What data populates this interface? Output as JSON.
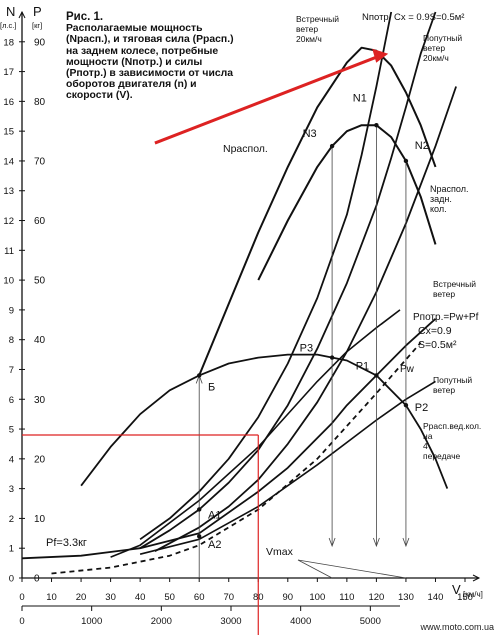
{
  "caption": {
    "title": "Рис. 1.",
    "body": "Располагаемые мощность (Nрасп.), и тяговая сила (Pрасп.) на заднем колесе, потребные мощности (Nпотр.) и силы (Pпотр.) в зависимости от числа оборотов двигателя (n) и скорости (V)."
  },
  "watermark": "www.moto.com.ua",
  "chart_data": {
    "type": "line",
    "axes": {
      "y_power": {
        "label": "N",
        "unit": "[л.с.]",
        "range": [
          0,
          19
        ],
        "ticks": [
          "0",
          "1",
          "2",
          "3",
          "4",
          "5",
          "6",
          "7",
          "8",
          "9",
          "10",
          "11",
          "12",
          "13",
          "14",
          "15",
          "16",
          "17",
          "18"
        ]
      },
      "y_force": {
        "label": "P",
        "unit": "[кг]",
        "range": [
          0,
          95
        ],
        "ticks": [
          "0",
          "10",
          "20",
          "30",
          "40",
          "50",
          "60",
          "70",
          "80",
          "90"
        ]
      },
      "x_speed": {
        "label": "V",
        "unit": "[км/ч]",
        "range": [
          0,
          150
        ],
        "ticks": [
          "0",
          "10",
          "20",
          "30",
          "40",
          "50",
          "60",
          "70",
          "80",
          "90",
          "100",
          "110",
          "120",
          "130",
          "140",
          "150"
        ]
      },
      "x_rpm": {
        "label": "",
        "range": [
          0,
          6000
        ],
        "ticks": [
          "0",
          "1000",
          "2000",
          "3000",
          "4000",
          "5000"
        ]
      }
    },
    "curve_labels": {
      "n_headwind_top": "Встречный ветер 20км/ч",
      "n_req_top": "Nпотр. Cx = 0.9S=0.5м²",
      "n_tailwind_top": "Попутный ветер 20км/ч",
      "n_avail": "Nраспол.",
      "n_avail_rear": "Nраспол. задн. кол.",
      "headwind_right": "Встречный ветер",
      "p_req": "Pпотр.=Pw+Pf",
      "cx": "Cx=0.9",
      "s": "S=0.5м²",
      "pw": "Pw",
      "tailwind_right": "Попутный ветер",
      "p_avail": "Pрасп.вед.кол. на 4 передаче",
      "vmax": "Vmax",
      "pf": "Pf=3.3кг"
    },
    "points": [
      "N1",
      "N2",
      "N3",
      "P1",
      "P2",
      "P3",
      "A1",
      "A2",
      "Б"
    ],
    "series": [
      {
        "key": "n_avail",
        "values": [
          [
            60,
            6.8
          ],
          [
            70,
            9.2
          ],
          [
            80,
            11.6
          ],
          [
            90,
            13.8
          ],
          [
            100,
            15.8
          ],
          [
            110,
            17.3
          ],
          [
            115,
            17.8
          ],
          [
            120,
            17.7
          ],
          [
            125,
            17.2
          ],
          [
            130,
            16.3
          ],
          [
            135,
            15.2
          ],
          [
            140,
            13.8
          ]
        ]
      },
      {
        "key": "n_avail_rear",
        "values": [
          [
            80,
            10.0
          ],
          [
            90,
            12.0
          ],
          [
            100,
            13.8
          ],
          [
            105,
            14.5
          ],
          [
            110,
            15.0
          ],
          [
            115,
            15.2
          ],
          [
            120,
            15.2
          ],
          [
            125,
            14.8
          ],
          [
            130,
            14.0
          ],
          [
            135,
            12.8
          ],
          [
            140,
            11.2
          ]
        ]
      },
      {
        "key": "n_req_head",
        "values": [
          [
            40,
            1.3
          ],
          [
            50,
            2.0
          ],
          [
            60,
            2.9
          ],
          [
            70,
            4.0
          ],
          [
            80,
            5.4
          ],
          [
            90,
            7.2
          ],
          [
            100,
            9.4
          ],
          [
            105,
            10.8
          ],
          [
            110,
            12.2
          ],
          [
            115,
            14.2
          ],
          [
            120,
            16.5
          ],
          [
            125,
            19.0
          ]
        ]
      },
      {
        "key": "n_req",
        "values": [
          [
            40,
            1.0
          ],
          [
            50,
            1.6
          ],
          [
            60,
            2.3
          ],
          [
            70,
            3.2
          ],
          [
            80,
            4.3
          ],
          [
            90,
            5.8
          ],
          [
            100,
            7.7
          ],
          [
            110,
            9.9
          ],
          [
            120,
            12.5
          ],
          [
            125,
            14.1
          ],
          [
            130,
            15.8
          ],
          [
            135,
            17.6
          ],
          [
            140,
            19.0
          ]
        ]
      },
      {
        "key": "n_req_tail",
        "values": [
          [
            45,
            0.9
          ],
          [
            60,
            1.7
          ],
          [
            70,
            2.4
          ],
          [
            80,
            3.3
          ],
          [
            90,
            4.5
          ],
          [
            100,
            5.9
          ],
          [
            110,
            7.6
          ],
          [
            120,
            9.6
          ],
          [
            130,
            11.9
          ],
          [
            140,
            14.5
          ],
          [
            147,
            16.5
          ]
        ]
      },
      {
        "key": "p_head",
        "values": [
          [
            30,
            0.7
          ],
          [
            40,
            1.1
          ],
          [
            60,
            2.6
          ],
          [
            80,
            4.4
          ],
          [
            100,
            6.6
          ],
          [
            110,
            7.6
          ],
          [
            120,
            8.4
          ],
          [
            128,
            9.0
          ]
        ]
      },
      {
        "key": "p_req",
        "values": [
          [
            0,
            0.66
          ],
          [
            20,
            0.75
          ],
          [
            40,
            1.0
          ],
          [
            60,
            1.5
          ],
          [
            80,
            2.9
          ],
          [
            90,
            3.7
          ],
          [
            100,
            4.7
          ],
          [
            105,
            5.2
          ],
          [
            110,
            5.8
          ],
          [
            120,
            6.8
          ],
          [
            130,
            7.8
          ],
          [
            140,
            8.7
          ]
        ]
      },
      {
        "key": "pw",
        "values": [
          [
            10,
            0.15
          ],
          [
            30,
            0.35
          ],
          [
            50,
            0.75
          ],
          [
            60,
            1.1
          ],
          [
            80,
            2.3
          ],
          [
            100,
            4.0
          ],
          [
            120,
            6.2
          ],
          [
            135,
            7.9
          ]
        ]
      },
      {
        "key": "p_tail",
        "values": [
          [
            40,
            0.8
          ],
          [
            60,
            1.3
          ],
          [
            80,
            2.4
          ],
          [
            100,
            3.8
          ],
          [
            120,
            5.3
          ],
          [
            130,
            6.0
          ],
          [
            140,
            6.6
          ]
        ]
      },
      {
        "key": "p_avail",
        "values": [
          [
            20,
            3.1
          ],
          [
            30,
            4.4
          ],
          [
            40,
            5.5
          ],
          [
            50,
            6.3
          ],
          [
            60,
            6.8
          ],
          [
            70,
            7.2
          ],
          [
            80,
            7.4
          ],
          [
            90,
            7.5
          ],
          [
            100,
            7.5
          ],
          [
            110,
            7.3
          ],
          [
            120,
            6.8
          ],
          [
            130,
            5.8
          ],
          [
            135,
            5.0
          ],
          [
            140,
            4.0
          ],
          [
            144,
            3.0
          ]
        ]
      }
    ],
    "annotation_arrow": {
      "from": [
        45,
        14.6
      ],
      "to": [
        124,
        17.6
      ],
      "color": "#dd2222"
    }
  }
}
